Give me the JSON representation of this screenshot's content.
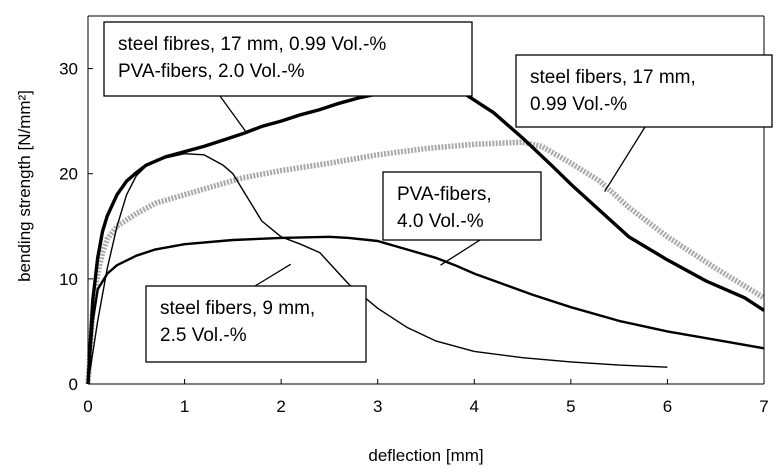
{
  "chart_data": {
    "type": "line",
    "xlabel": "deflection [mm]",
    "ylabel": "bending strength [N/mm²]",
    "xlim": [
      0,
      7
    ],
    "ylim": [
      0,
      35
    ],
    "x_ticks": [
      0,
      1,
      2,
      3,
      4,
      5,
      6,
      7
    ],
    "y_ticks": [
      0,
      10,
      20,
      30
    ],
    "grid": false,
    "legend": "none",
    "series": [
      {
        "id": "steel-pva",
        "color": "#000000",
        "style": "thick",
        "x": [
          0,
          0.05,
          0.1,
          0.15,
          0.2,
          0.3,
          0.4,
          0.5,
          0.6,
          0.8,
          1.0,
          1.2,
          1.4,
          1.6,
          1.8,
          2.0,
          2.2,
          2.4,
          2.6,
          2.8,
          3.0,
          3.3,
          3.6,
          3.9,
          4.2,
          4.5,
          4.8,
          5.0,
          5.3,
          5.6,
          6.0,
          6.4,
          6.8,
          7.0
        ],
        "y": [
          0,
          8,
          12,
          14.5,
          16,
          18,
          19.3,
          20.1,
          20.8,
          21.6,
          22.1,
          22.6,
          23.2,
          23.8,
          24.5,
          25.0,
          25.6,
          26.1,
          26.7,
          27.2,
          27.6,
          27.8,
          27.9,
          27.6,
          25.8,
          23.4,
          20.8,
          19.0,
          16.5,
          14.0,
          11.8,
          9.8,
          8.2,
          7.0
        ]
      },
      {
        "id": "steel-17mm",
        "color": "#a9a9a9",
        "style": "dotted-thick",
        "x": [
          0,
          0.05,
          0.1,
          0.15,
          0.2,
          0.3,
          0.4,
          0.5,
          0.7,
          1.0,
          1.3,
          1.6,
          2.0,
          2.5,
          3.0,
          3.5,
          4.0,
          4.5,
          4.7,
          5.0,
          5.3,
          5.6,
          6.0,
          6.5,
          7.0
        ],
        "y": [
          0,
          7,
          10.5,
          12.5,
          13.8,
          15.0,
          15.6,
          16.2,
          17.2,
          18.0,
          18.8,
          19.6,
          20.3,
          21.0,
          21.8,
          22.4,
          22.8,
          23.0,
          22.6,
          21.0,
          19.3,
          16.8,
          14.0,
          11.0,
          8.2
        ]
      },
      {
        "id": "pva-4vol",
        "color": "#000000",
        "style": "medium",
        "x": [
          0,
          0.05,
          0.1,
          0.2,
          0.3,
          0.5,
          0.7,
          1.0,
          1.5,
          2.0,
          2.5,
          2.7,
          3.0,
          3.3,
          3.6,
          3.8,
          4.0,
          4.3,
          4.6,
          5.0,
          5.5,
          6.0,
          6.5,
          7.0
        ],
        "y": [
          0,
          6,
          9,
          10.5,
          11.3,
          12.2,
          12.8,
          13.3,
          13.7,
          13.9,
          14.0,
          13.9,
          13.6,
          12.8,
          12.0,
          11.3,
          10.5,
          9.5,
          8.5,
          7.3,
          6.0,
          5.0,
          4.2,
          3.4
        ]
      },
      {
        "id": "steel-9mm",
        "color": "#000000",
        "style": "thin",
        "x": [
          0,
          0.1,
          0.2,
          0.3,
          0.4,
          0.5,
          0.6,
          0.7,
          0.8,
          1.0,
          1.2,
          1.4,
          1.5,
          1.6,
          1.7,
          1.8,
          2.0,
          2.2,
          2.4,
          2.5,
          2.7,
          3.0,
          3.3,
          3.6,
          4.0,
          4.5,
          5.0,
          5.5,
          6.0
        ],
        "y": [
          0,
          6,
          11,
          15,
          18,
          19.8,
          20.7,
          21.2,
          21.5,
          21.9,
          21.8,
          20.8,
          20.0,
          18.5,
          17.0,
          15.5,
          14.0,
          13.3,
          12.5,
          11.5,
          9.5,
          7.2,
          5.4,
          4.1,
          3.1,
          2.5,
          2.1,
          1.8,
          1.6
        ]
      }
    ],
    "annotations": [
      {
        "id": "a1",
        "lines": [
          "steel fibres, 17 mm, 0.99 Vol.-%",
          "PVA-fibers, 2.0 Vol.-%"
        ],
        "target": [
          1.65,
          23.8
        ]
      },
      {
        "id": "a2",
        "lines": [
          "steel fibers, 17 mm,",
          "0.99 Vol.-%"
        ],
        "target": [
          5.35,
          18.3
        ]
      },
      {
        "id": "a3",
        "lines": [
          "PVA-fibers,",
          "4.0 Vol.-%"
        ],
        "target": [
          3.65,
          11.3
        ]
      },
      {
        "id": "a4",
        "lines": [
          "steel fibers, 9 mm,",
          "2.5 Vol.-%"
        ],
        "target": [
          2.1,
          11.4
        ]
      }
    ]
  }
}
